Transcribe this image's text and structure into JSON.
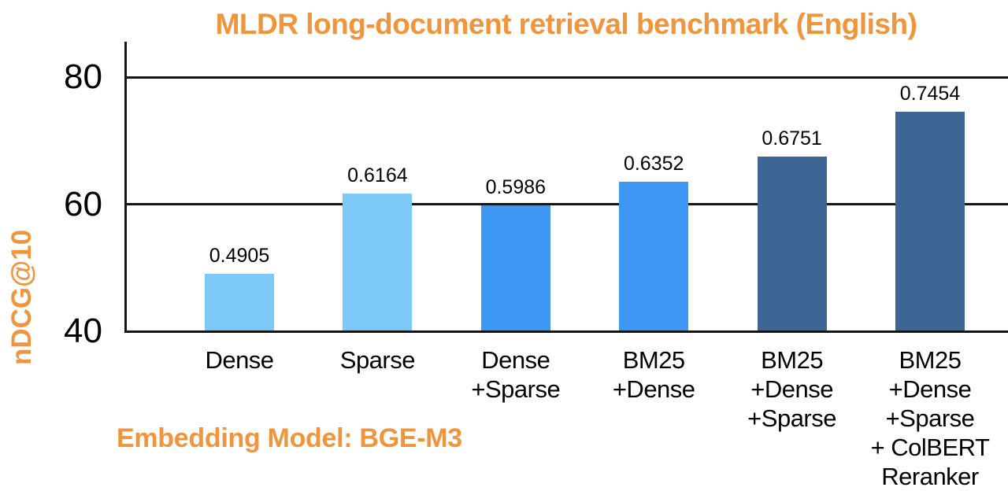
{
  "chart_data": {
    "type": "bar",
    "title": "MLDR long-document retrieval benchmark (English)",
    "ylabel": "nDCG@10",
    "footnote": "Embedding Model: BGE-M3",
    "categories": [
      [
        "Dense"
      ],
      [
        "Sparse"
      ],
      [
        "Dense",
        "+Sparse"
      ],
      [
        "BM25",
        "+Dense"
      ],
      [
        "BM25",
        "+Dense",
        "+Sparse"
      ],
      [
        "BM25",
        "+Dense",
        "+Sparse",
        "+ ColBERT",
        "Reranker"
      ]
    ],
    "values": [
      0.4905,
      0.6164,
      0.5986,
      0.6352,
      0.6751,
      0.7454
    ],
    "value_labels": [
      "0.4905",
      "0.6164",
      "0.5986",
      "0.6352",
      "0.6751",
      "0.7454"
    ],
    "bar_colors": [
      "#7DC9F8",
      "#7DC9F8",
      "#3E97F3",
      "#3E97F3",
      "#3E6694",
      "#3E6694"
    ],
    "y_ticks": [
      40,
      60,
      80
    ],
    "ylim": [
      40,
      85.6
    ],
    "value_scale": 100,
    "grid": true,
    "legend_position": "none",
    "xlabel": ""
  },
  "colors": {
    "accent_orange": "#F0953C",
    "bar_light_blue": "#7DC9F8",
    "bar_medium_blue": "#3E97F3",
    "bar_dark_blue": "#3E6694",
    "axis_line": "#151515",
    "label_black": "#000000",
    "background": "#FFFFFF"
  }
}
